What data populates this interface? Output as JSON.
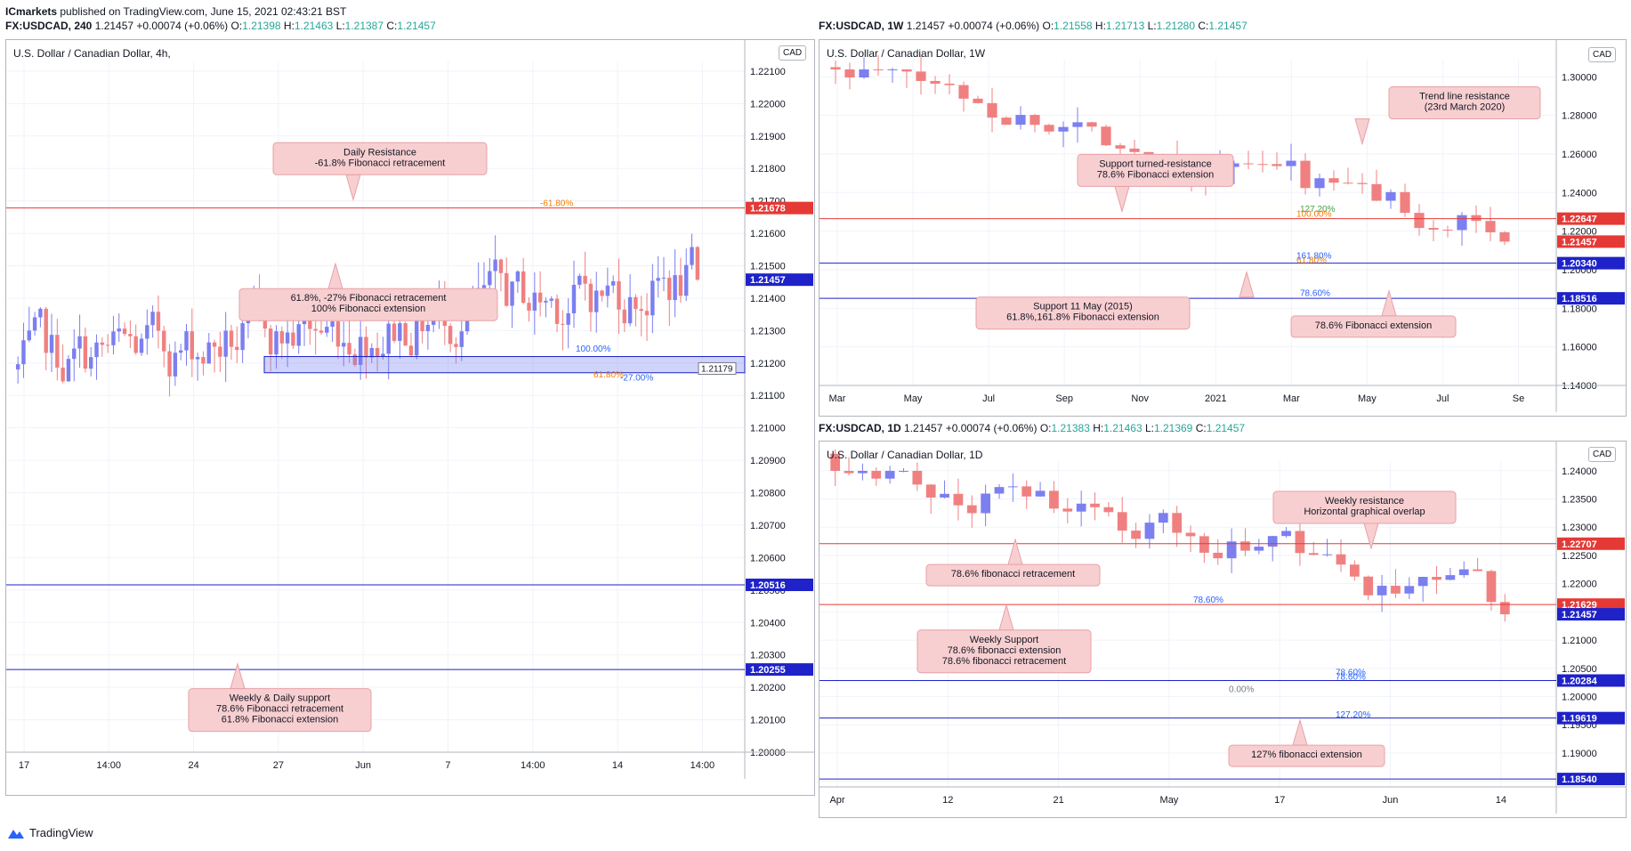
{
  "header": {
    "publisher": "ICmarkets",
    "published_text": "published on TradingView.com, June 15, 2021 02:43:21 BST"
  },
  "footer": {
    "brand": "TradingView"
  },
  "colors": {
    "bull": "#7b7ff0",
    "bear": "#f08080",
    "grid": "#f0f3fa",
    "red_line": "#e53935",
    "blue_line": "#1e22c8",
    "callout_bg": "#f8cfd1",
    "callout_border": "#e8a0a6"
  },
  "panels": [
    {
      "id": "h4",
      "header": {
        "symbol": "FX:USDCAD, 240",
        "change": "1.21457 +0.00074 (+0.06%)",
        "o": "1.21398",
        "h": "1.21463",
        "l": "1.21387",
        "c": "1.21457"
      },
      "title": "U.S. Dollar / Canadian Dollar, 4h,",
      "currency": "CAD",
      "x_ticks": [
        "17",
        "14:00",
        "24",
        "27",
        "Jun",
        "7",
        "14:00",
        "14",
        "14:00"
      ],
      "chart_data": {
        "type": "candlestick",
        "ylim": [
          1.2,
          1.2213
        ],
        "y_ticks": [
          "1.20000",
          "1.20100",
          "1.20200",
          "1.20300",
          "1.20400",
          "1.20500",
          "1.20600",
          "1.20700",
          "1.20800",
          "1.20900",
          "1.21000",
          "1.21100",
          "1.21200",
          "1.21300",
          "1.21400",
          "1.21500",
          "1.21600",
          "1.21700",
          "1.21800",
          "1.21900",
          "1.22000",
          "1.22100"
        ],
        "start": 1.2118,
        "last": 1.21457,
        "n_candles": 122,
        "levels": [
          {
            "price": 1.21678,
            "label": "1.21678",
            "color": "#e53935"
          },
          {
            "price": 1.20516,
            "label": "1.20516",
            "color": "#1e22c8"
          },
          {
            "price": 1.20255,
            "label": "1.20255",
            "color": "#1e22c8"
          }
        ],
        "current_price": {
          "price": 1.21457,
          "label": "1.21457"
        },
        "marker": {
          "price": 1.21179,
          "label": "1.21179"
        },
        "zone": {
          "top": 1.2122,
          "bottom": 1.2117
        },
        "fib_labels": [
          {
            "text": "-61.80%",
            "price": 1.21678,
            "color": "#f57c00"
          },
          {
            "text": "100.00%",
            "price": 1.2123,
            "color": "#2962ff"
          },
          {
            "text": "61.80%",
            "price": 1.2115,
            "color": "#f57c00"
          },
          {
            "text": "-27.00%",
            "price": 1.2114,
            "color": "#2962ff"
          }
        ],
        "annotations": [
          {
            "lines": [
              "Daily Resistance",
              "-61.8% Fibonacci retracement"
            ],
            "price": 1.2183
          },
          {
            "lines": [
              "61.8%, -27% Fibonacci retracement",
              "100% Fibonacci extension"
            ],
            "price": 1.2138
          },
          {
            "lines": [
              "Weekly & Daily support",
              "78.6% Fibonacci retracement",
              "61.8% Fibonacci extension"
            ],
            "price": 1.2013
          }
        ]
      }
    },
    {
      "id": "w1",
      "header": {
        "symbol": "FX:USDCAD, 1W",
        "change": "1.21457 +0.00074 (+0.06%)",
        "o": "1.21558",
        "h": "1.21713",
        "l": "1.21280",
        "c": "1.21457"
      },
      "title": "U.S. Dollar / Canadian Dollar, 1W",
      "currency": "CAD",
      "x_ticks": [
        "Mar",
        "May",
        "Jul",
        "Sep",
        "Nov",
        "2021",
        "Mar",
        "May",
        "Jul",
        "Se"
      ],
      "chart_data": {
        "type": "candlestick",
        "ylim": [
          1.14,
          1.3089
        ],
        "y_ticks": [
          "1.14000",
          "1.16000",
          "1.18000",
          "1.20000",
          "1.22000",
          "1.24000",
          "1.26000",
          "1.28000",
          "1.30000"
        ],
        "start": 1.305,
        "last": 1.21457,
        "n_candles": 48,
        "levels": [
          {
            "price": 1.22647,
            "label": "1.22647",
            "color": "#e53935"
          },
          {
            "price": 1.2034,
            "label": "1.20340",
            "color": "#1e22c8"
          },
          {
            "price": 1.18516,
            "label": "1.18516",
            "color": "#1e22c8"
          }
        ],
        "current_price": {
          "price": 1.21457,
          "label": "1.21457"
        },
        "fib_labels": [
          {
            "text": "127.20%",
            "price": 1.229,
            "color": "#43a047"
          },
          {
            "text": "100.00%",
            "price": 1.2265,
            "color": "#f57c00"
          },
          {
            "text": "161.80%",
            "price": 1.2048,
            "color": "#2962ff"
          },
          {
            "text": "61.80%",
            "price": 1.2025,
            "color": "#f57c00"
          },
          {
            "text": "78.60%",
            "price": 1.1855,
            "color": "#2962ff"
          }
        ],
        "annotations": [
          {
            "lines": [
              "Trend line resistance",
              "(23rd March 2020)"
            ],
            "price": 1.2865
          },
          {
            "lines": [
              "Support turned-resistance",
              "78.6% Fibonacci extension"
            ],
            "price": 1.2515
          },
          {
            "lines": [
              "Support 11 May (2015)",
              "61.8%,161.8% Fibonacci extension"
            ],
            "price": 1.1775
          },
          {
            "lines": [
              "78.6% Fibonacci extension"
            ],
            "price": 1.1705
          }
        ]
      }
    },
    {
      "id": "d1",
      "header": {
        "symbol": "FX:USDCAD, 1D",
        "change": "1.21457 +0.00074 (+0.06%)",
        "o": "1.21383",
        "h": "1.21463",
        "l": "1.21369",
        "c": "1.21457"
      },
      "title": "U.S. Dollar / Canadian Dollar, 1D",
      "currency": "CAD",
      "x_ticks": [
        "Apr",
        "12",
        "21",
        "May",
        "17",
        "Jun",
        "14"
      ],
      "chart_data": {
        "type": "candlestick",
        "ylim": [
          1.184,
          1.2417
        ],
        "y_ticks": [
          "1.18500",
          "1.19000",
          "1.19500",
          "1.20000",
          "1.20500",
          "1.21000",
          "1.21500",
          "1.22000",
          "1.22500",
          "1.23000",
          "1.23500",
          "1.24000"
        ],
        "start": 1.243,
        "last": 1.21457,
        "n_candles": 50,
        "levels": [
          {
            "price": 1.22707,
            "label": "1.22707",
            "color": "#e53935"
          },
          {
            "price": 1.21629,
            "label": "1.21629",
            "color": "#e53935"
          },
          {
            "price": 1.20284,
            "label": "1.20284",
            "color": "#1e22c8"
          },
          {
            "price": 1.19619,
            "label": "1.19619",
            "color": "#1e22c8"
          },
          {
            "price": 1.1854,
            "label": "1.18540",
            "color": "#1e22c8"
          }
        ],
        "current_price": {
          "price": 1.21457,
          "label": "1.21457"
        },
        "fib_labels": [
          {
            "text": "78.60%",
            "price": 1.2163,
            "color": "#2962ff"
          },
          {
            "text": "78.60%",
            "price": 1.2035,
            "color": "#2962ff"
          },
          {
            "text": "78.60%",
            "price": 1.2027,
            "color": "#2962ff"
          },
          {
            "text": "0.00%",
            "price": 1.2005,
            "color": "#787b86"
          },
          {
            "text": "127.20%",
            "price": 1.196,
            "color": "#2962ff"
          }
        ],
        "annotations": [
          {
            "lines": [
              "Weekly resistance",
              "Horizontal graphical overlap"
            ],
            "price": 1.2335
          },
          {
            "lines": [
              "78.6% fibonacci retracement"
            ],
            "price": 1.2215
          },
          {
            "lines": [
              "Weekly Support",
              "78.6% fibonacci extension",
              "78.6% fibonacci retracement"
            ],
            "price": 1.208
          },
          {
            "lines": [
              "127% fibonacci extension"
            ],
            "price": 1.1895
          }
        ]
      }
    }
  ]
}
